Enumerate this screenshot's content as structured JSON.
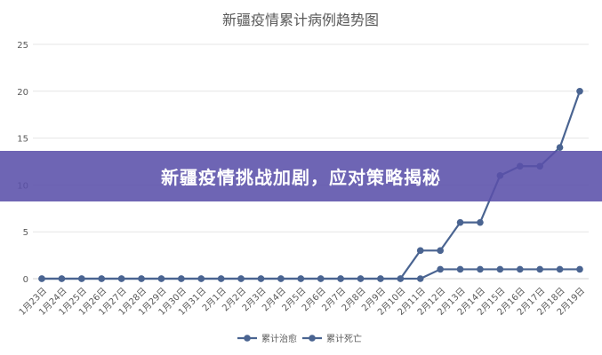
{
  "chart_data": {
    "type": "line",
    "title": "新疆疫情累计病例趋势图",
    "categories": [
      "1月23日",
      "1月24日",
      "1月25日",
      "1月26日",
      "1月27日",
      "1月28日",
      "1月29日",
      "1月30日",
      "1月31日",
      "2月1日",
      "2月2日",
      "2月3日",
      "2月4日",
      "2月5日",
      "2月6日",
      "2月7日",
      "2月8日",
      "2月9日",
      "2月10日",
      "2月11日",
      "2月12日",
      "2月13日",
      "2月14日",
      "2月15日",
      "2月16日",
      "2月17日",
      "2月18日",
      "2月19日"
    ],
    "series": [
      {
        "name": "累计治愈",
        "color": "#4a6491",
        "values": [
          0,
          0,
          0,
          0,
          0,
          0,
          0,
          0,
          0,
          0,
          0,
          0,
          0,
          0,
          0,
          0,
          0,
          0,
          0,
          3,
          3,
          6,
          6,
          11,
          12,
          12,
          14,
          20
        ]
      },
      {
        "name": "累计死亡",
        "color": "#4a6491",
        "values": [
          0,
          0,
          0,
          0,
          0,
          0,
          0,
          0,
          0,
          0,
          0,
          0,
          0,
          0,
          0,
          0,
          0,
          0,
          0,
          0,
          1,
          1,
          1,
          1,
          1,
          1,
          1,
          1
        ]
      }
    ],
    "yticks": [
      0,
      5,
      10,
      15,
      20,
      25
    ],
    "ylim": [
      0,
      25
    ],
    "grid": true,
    "legend": "bottom"
  },
  "banner": {
    "text": "新疆疫情挑战加剧，应对策略揭秘"
  }
}
